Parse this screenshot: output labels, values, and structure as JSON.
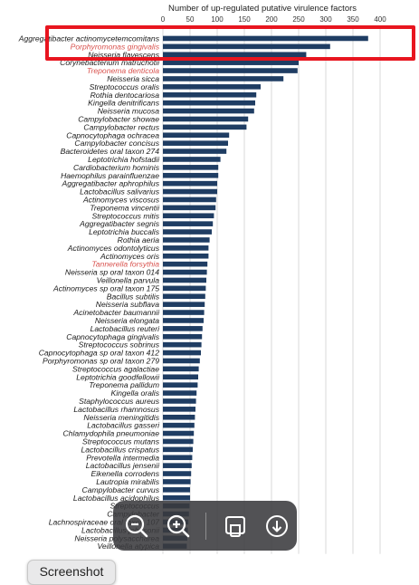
{
  "chart_data": {
    "type": "bar",
    "orientation": "horizontal",
    "title": "Number of up-regulated putative virulence factors",
    "xlim": [
      0,
      400
    ],
    "x_ticks": [
      0,
      50,
      100,
      150,
      200,
      250,
      300,
      350,
      400
    ],
    "grid": true,
    "bar_color": "#1f3d63",
    "highlight_label_color": "#d9534f",
    "categories": [
      "Aggregatibacter actinomycetemcomitans",
      "Porphyromonas gingivalis",
      "Neisseria flavescens",
      "Corynebacterium matruchotii",
      "Treponema denticola",
      "Neisseria sicca",
      "Streptococcus oralis",
      "Rothia dentocariosa",
      "Kingella denitrificans",
      "Neisseria mucosa",
      "Campylobacter showae",
      "Campylobacter rectus",
      "Capnocytophaga ochracea",
      "Campylobacter concisus",
      "Bacteroidetes oral taxon 274",
      "Leptotrichia hofstadii",
      "Cardiobacterium hominis",
      "Haemophilus parainfluenzae",
      "Aggregatibacter aphrophilus",
      "Lactobacillus salivarius",
      "Actinomyces viscosus",
      "Treponema vincentii",
      "Streptococcus mitis",
      "Aggregatibacter segnis",
      "Leptotrichia buccalis",
      "Rothia aeria",
      "Actinomyces odontolyticus",
      "Actinomyces oris",
      "Tannerella forsythia",
      "Neisseria sp oral taxon 014",
      "Veillonella parvula",
      "Actinomyces sp oral taxon 175",
      "Bacillus subtilis",
      "Neisseria subflava",
      "Acinetobacter baumannii",
      "Neisseria elongata",
      "Lactobacillus reuteri",
      "Capnocytophaga gingivalis",
      "Streptococcus sobrinus",
      "Capnocytophaga sp oral taxon 412",
      "Porphyromonas sp oral taxon 279",
      "Streptococcus agalactiae",
      "Leptotrichia goodfellowii",
      "Treponema pallidum",
      "Kingella oralis",
      "Staphylococcus aureus",
      "Lactobacillus rhamnosus",
      "Neisseria meningitidis",
      "Lactobacillus gasseri",
      "Chlamydophila pneumoniae",
      "Streptococcus mutans",
      "Lactobacillus crispatus",
      "Prevotella intermedia",
      "Lactobacillus jensenii",
      "Eikenella corrodens",
      "Lautropia mirabilis",
      "Campylobacter curvus",
      "Lactobacillus acidophilus",
      "Streptococcus",
      "Campylobacter",
      "Lachnospiraceae oral taxon 107",
      "Lactobacillus johnsonii",
      "Neisseria polysaccharea",
      "Veillonella atypica"
    ],
    "values": [
      378,
      308,
      264,
      250,
      248,
      222,
      180,
      172,
      170,
      168,
      157,
      154,
      122,
      120,
      117,
      106,
      102,
      102,
      100,
      100,
      98,
      97,
      94,
      92,
      90,
      86,
      84,
      84,
      82,
      81,
      80,
      79,
      78,
      77,
      76,
      75,
      73,
      72,
      71,
      70,
      68,
      66,
      65,
      64,
      62,
      61,
      60,
      59,
      58,
      57,
      56,
      55,
      54,
      53,
      52,
      51,
      50,
      50,
      49,
      48,
      47,
      46,
      45,
      44
    ],
    "highlighted": [
      "Porphyromonas gingivalis",
      "Treponema denticola",
      "Tannerella forsythia"
    ],
    "highlight_box_label": "Porphyromonas gingivalis"
  },
  "toolbar": {
    "zoom_out": "zoom-out-icon",
    "zoom_in": "zoom-in-icon",
    "crop": "crop-icon",
    "download": "download-icon"
  },
  "screenshot_label": "Screenshot",
  "colors": {
    "highlight_box": "#e8151f",
    "toolbar_bg": "#3a3a3e"
  }
}
